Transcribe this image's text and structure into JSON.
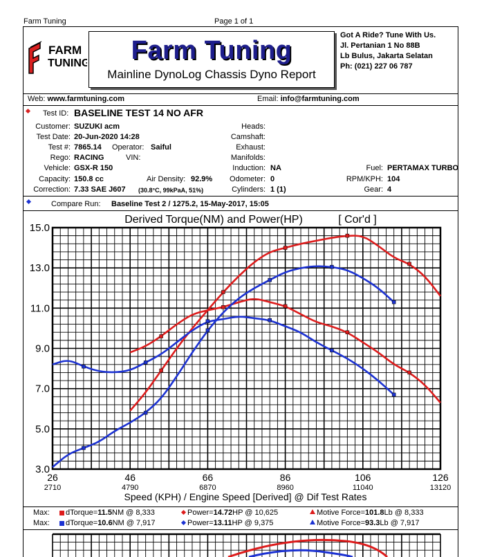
{
  "header": {
    "company": "Farm Tuning",
    "page": "Page 1 of 1",
    "logo_line1": "FARM",
    "logo_line2": "TUNING",
    "title": "Farm Tuning",
    "subtitle": "Mainline DynoLog Chassis Dyno Report",
    "address": [
      "Got A Ride? Tune With Us.",
      "Jl. Pertanian 1 No 88B",
      "Lb Bulus, Jakarta Selatan",
      "Ph: (021) 227 06 787"
    ],
    "web_label": "Web:",
    "web": "www.farmtuning.com",
    "email_label": "Email:",
    "email": "info@farmtuning.com"
  },
  "test": {
    "id_label": "Test ID:",
    "id": "BASELINE TEST 14 NO AFR",
    "customer_label": "Customer:",
    "customer": "SUZUKI acm",
    "date_label": "Test Date:",
    "date": "20-Jun-2020 14:28",
    "testno_label": "Test #:",
    "testno": "7865.14",
    "operator_label": "Operator:",
    "operator": "Saiful",
    "rego_label": "Rego:",
    "rego": "RACING",
    "vin_label": "VIN:",
    "vehicle_label": "Vehicle:",
    "vehicle": "GSX-R 150",
    "capacity_label": "Capacity:",
    "capacity": "150.8 cc",
    "airdensity_label": "Air Density:",
    "airdensity": "92.9%",
    "correction_label": "Correction:",
    "correction": "7.33 SAE J607",
    "correction_detail": "(30.8°C, 99kPaA, 51%)",
    "heads_label": "Heads:",
    "camshaft_label": "Camshaft:",
    "exhaust_label": "Exhaust:",
    "manifolds_label": "Manifolds:",
    "induction_label": "Induction:",
    "induction": "NA",
    "odometer_label": "Odometer:",
    "odometer": "0",
    "cylinders_label": "Cylinders:",
    "cylinders": "1 (1)",
    "fuel_label": "Fuel:",
    "fuel": "PERTAMAX TURBO",
    "rpmkph_label": "RPM/KPH:",
    "rpmkph": "104",
    "gear_label": "Gear:",
    "gear": "4",
    "compare_label": "Compare Run:",
    "compare": "Baseline Test 2 / 1275.2,  15-May-2017,   15:05"
  },
  "chart_data": {
    "type": "line",
    "title": "Derived Torque(NM) and Power(HP)",
    "title_note": "[ Cor'd ]",
    "xlabel": "Speed (KPH) / Engine Speed [Derived] @ Dif Test Rates",
    "x_ticks": [
      26,
      46,
      66,
      86,
      106,
      126
    ],
    "x_ticks_rpm": [
      "2710",
      "4790",
      "6870",
      "8960",
      "11040",
      "13120"
    ],
    "y_ticks": [
      "3.0",
      "5.0",
      "7.0",
      "9.0",
      "11.0",
      "13.0",
      "15.0"
    ],
    "xlim": [
      26,
      126
    ],
    "ylim": [
      3,
      15
    ],
    "colors": {
      "red": "#dd1c1c",
      "blue": "#1c32d2"
    },
    "series": [
      {
        "color": "#dd1c1c",
        "x": [
          46,
          50,
          54,
          58,
          62,
          66,
          70,
          74,
          78,
          82,
          86,
          90,
          94,
          98,
          102,
          106,
          110,
          114,
          118,
          122,
          126
        ],
        "y": [
          5.9,
          6.8,
          7.9,
          9.0,
          10.0,
          10.9,
          11.8,
          12.6,
          13.3,
          13.8,
          14.0,
          14.2,
          14.35,
          14.5,
          14.6,
          14.6,
          14.1,
          13.5,
          13.2,
          12.6,
          11.6
        ]
      },
      {
        "color": "#dd1c1c",
        "x": [
          46,
          50,
          54,
          58,
          62,
          66,
          70,
          74,
          78,
          82,
          86,
          90,
          94,
          98,
          102,
          106,
          110,
          114,
          118,
          122,
          126
        ],
        "y": [
          8.8,
          9.1,
          9.6,
          10.2,
          10.7,
          10.9,
          11.05,
          11.3,
          11.5,
          11.3,
          11.1,
          10.7,
          10.3,
          10.1,
          9.8,
          9.3,
          8.8,
          8.2,
          7.8,
          7.2,
          6.3
        ]
      },
      {
        "color": "#1c32d2",
        "x": [
          26,
          30,
          34,
          38,
          42,
          46,
          50,
          54,
          58,
          62,
          66,
          70,
          74,
          78,
          82,
          86,
          90,
          94,
          98,
          102,
          106,
          110,
          114
        ],
        "y": [
          3.1,
          3.75,
          4.05,
          4.35,
          4.9,
          5.3,
          5.8,
          6.5,
          7.6,
          8.8,
          9.9,
          10.8,
          11.5,
          12.0,
          12.4,
          12.8,
          13.0,
          13.1,
          13.05,
          12.9,
          12.5,
          12.0,
          11.3
        ]
      },
      {
        "color": "#1c32d2",
        "x": [
          26,
          30,
          34,
          38,
          42,
          46,
          50,
          54,
          58,
          62,
          66,
          70,
          74,
          78,
          82,
          86,
          90,
          94,
          98,
          102,
          106,
          110,
          114
        ],
        "y": [
          8.2,
          8.45,
          8.1,
          7.85,
          7.8,
          7.9,
          8.3,
          8.7,
          9.3,
          9.9,
          10.35,
          10.45,
          10.6,
          10.5,
          10.4,
          10.1,
          9.8,
          9.3,
          8.9,
          8.5,
          8.0,
          7.4,
          6.7
        ]
      }
    ]
  },
  "summary": {
    "max_label": "Max:",
    "row1": {
      "dtorque_label": "dTorque=",
      "dtorque": "11.5",
      "dtorque_unit": "NM @ 8,333",
      "power_label": "Power=",
      "power": "14.72",
      "power_unit": "HP @ 10,625",
      "motive_label": "Motive Force=",
      "motive": "101.8",
      "motive_unit": "Lb @ 8,333"
    },
    "row2": {
      "dtorque_label": "dTorque=",
      "dtorque": "10.6",
      "dtorque_unit": "NM @ 7,917",
      "power_label": "Power=",
      "power": "13.11",
      "power_unit": "HP @ 9,375",
      "motive_label": "Motive Force=",
      "motive": "93.3",
      "motive_unit": "Lb @ 7,917"
    }
  }
}
